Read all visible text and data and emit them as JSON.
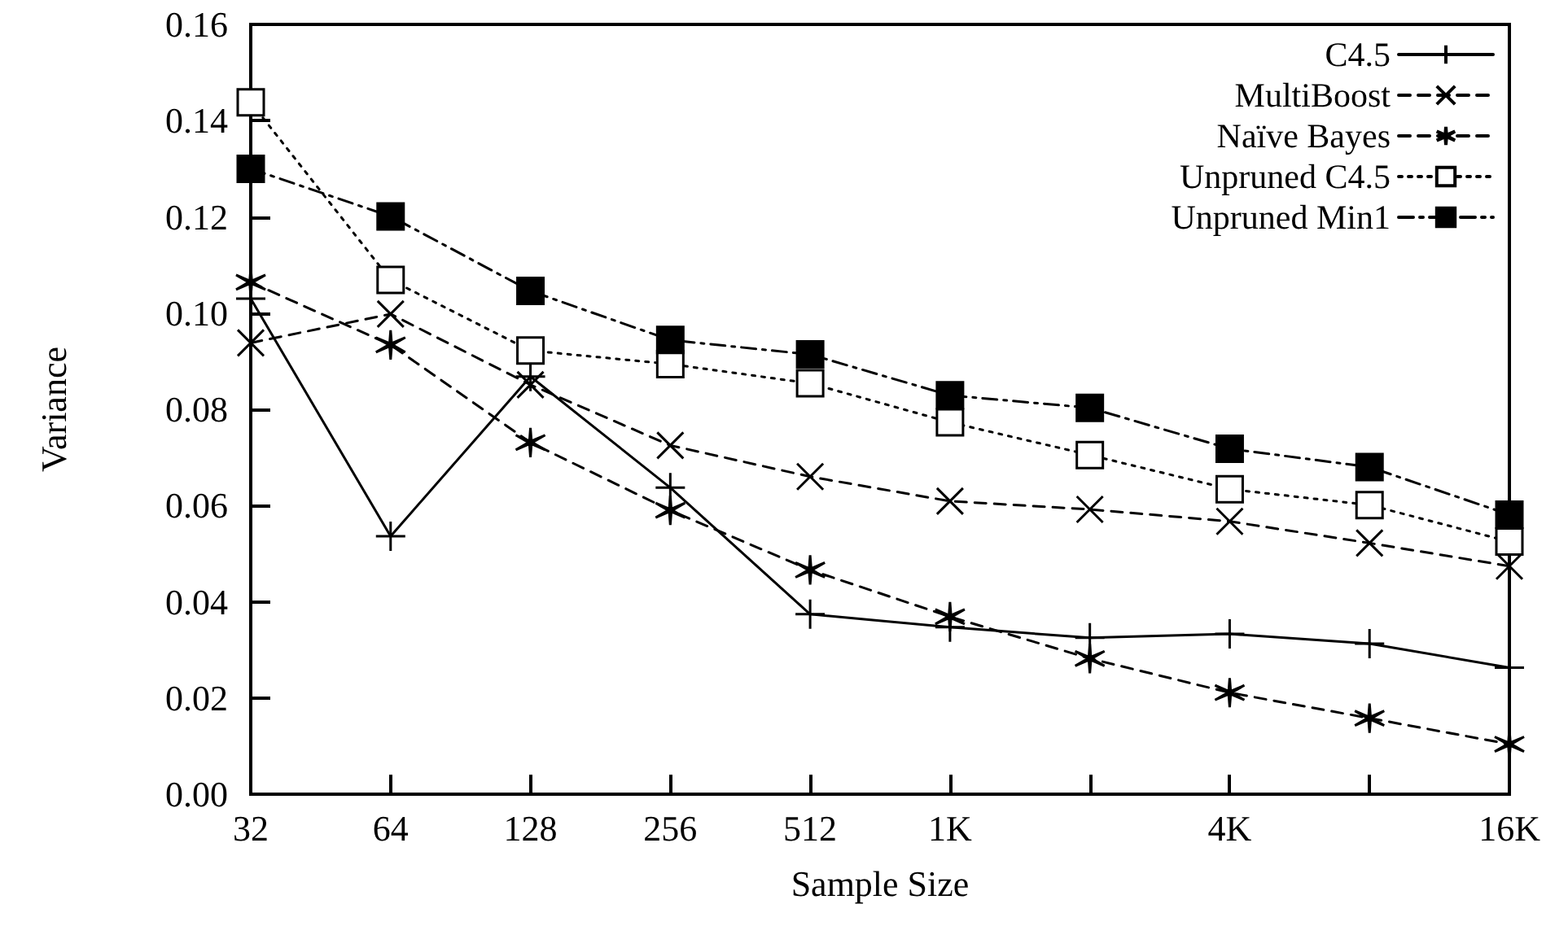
{
  "chart_data": {
    "type": "line",
    "xlabel": "Sample Size",
    "ylabel": "Variance",
    "categories": [
      "32",
      "64",
      "128",
      "256",
      "512",
      "1K",
      null,
      "4K",
      null,
      "16K"
    ],
    "ylim": [
      0,
      0.16
    ],
    "yticks": [
      {
        "value": 0,
        "label": "0.00"
      },
      {
        "value": 0.02,
        "label": "0.02"
      },
      {
        "value": 0.04,
        "label": "0.04"
      },
      {
        "value": 0.06,
        "label": "0.06"
      },
      {
        "value": 0.08,
        "label": "0.08"
      },
      {
        "value": 0.1,
        "label": "0.10"
      },
      {
        "value": 0.12,
        "label": "0.12"
      },
      {
        "value": 0.14,
        "label": "0.14"
      },
      {
        "value": 0.16,
        "label": "0.16"
      }
    ],
    "grid": false,
    "legend": "top right",
    "series": [
      {
        "name": "C4.5",
        "color": "#000000",
        "marker": "plus",
        "line_style": "solid",
        "values": [
          0.103,
          0.0536,
          0.0868,
          0.0637,
          0.0374,
          0.0347,
          0.0325,
          0.0333,
          0.0313,
          0.0263
        ]
      },
      {
        "name": "MultiBoost",
        "color": "#000000",
        "marker": "x",
        "line_style": "dashed",
        "values": [
          0.0938,
          0.0998,
          0.0851,
          0.0725,
          0.066,
          0.0609,
          0.0592,
          0.0567,
          0.0522,
          0.0474
        ]
      },
      {
        "name": "Naïve Bayes",
        "color": "#000000",
        "marker": "cross",
        "line_style": "dashed",
        "values": [
          0.1064,
          0.0934,
          0.0731,
          0.059,
          0.0466,
          0.0369,
          0.0282,
          0.0211,
          0.0158,
          0.0104
        ]
      },
      {
        "name": "Unpruned C4.5",
        "color": "#000000",
        "marker": "square-open",
        "line_style": "dotted",
        "values": [
          0.1438,
          0.1069,
          0.0922,
          0.0894,
          0.0854,
          0.0773,
          0.0705,
          0.0634,
          0.0601,
          0.0525
        ]
      },
      {
        "name": "Unpruned Min1",
        "color": "#000000",
        "marker": "square",
        "line_style": "dashdot",
        "values": [
          0.13,
          0.1201,
          0.1046,
          0.0944,
          0.0914,
          0.0829,
          0.0803,
          0.0718,
          0.068,
          0.0581
        ]
      }
    ]
  }
}
